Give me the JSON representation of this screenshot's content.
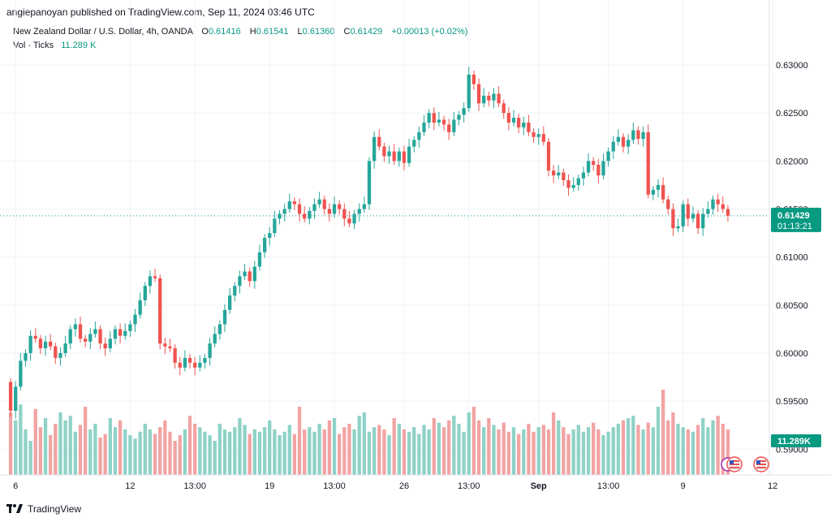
{
  "header": {
    "published": "angiepanoyan published on TradingView.com, Sep 11, 2024 03:46 UTC"
  },
  "legend": {
    "symbol": "New Zealand Dollar / U.S. Dollar, 4h, OANDA",
    "o_label": "O",
    "o_value": "0.61416",
    "h_label": "H",
    "h_value": "0.61541",
    "l_label": "L",
    "l_value": "0.61360",
    "c_label": "C",
    "c_value": "0.61429",
    "change": "+0.00013 (+0.02%)",
    "vol_label": "Vol · Ticks",
    "vol_value": "11.289 K"
  },
  "footer": {
    "brand": "TradingView"
  },
  "colors": {
    "up": "#26a69a",
    "down": "#ef5350",
    "vol_up": "#8fd2c7",
    "vol_down": "#f2a3a3",
    "badge": "#089981"
  },
  "chart_data": {
    "type": "candlestick",
    "title": "New Zealand Dollar / U.S. Dollar, 4h, OANDA",
    "ylim": [
      0.5885,
      0.631
    ],
    "y_ticks": [
      "0.63000",
      "0.62500",
      "0.62000",
      "0.61500",
      "0.61000",
      "0.60500",
      "0.60000",
      "0.59500",
      "0.59000"
    ],
    "y_tick_values": [
      0.63,
      0.625,
      0.62,
      0.615,
      0.61,
      0.605,
      0.6,
      0.595,
      0.59
    ],
    "x_ticks": [
      {
        "label": "6",
        "index": 1
      },
      {
        "label": "12",
        "index": 24
      },
      {
        "label": "13:00",
        "index": 37
      },
      {
        "label": "19",
        "index": 52
      },
      {
        "label": "13:00",
        "index": 65
      },
      {
        "label": "26",
        "index": 79
      },
      {
        "label": "13:00",
        "index": 92
      },
      {
        "label": "Sep",
        "index": 106
      },
      {
        "label": "13:00",
        "index": 120
      },
      {
        "label": "9",
        "index": 135
      },
      {
        "label": "12",
        "index": 153
      }
    ],
    "last_price": "0.61429",
    "countdown": "01:13:21",
    "last_volume": "11.289K",
    "close_start": 0.597,
    "closes": [
      0.594,
      0.5965,
      0.5992,
      0.6,
      0.6018,
      0.6015,
      0.6005,
      0.6012,
      0.6007,
      0.5995,
      0.6,
      0.601,
      0.6025,
      0.603,
      0.6015,
      0.6012,
      0.602,
      0.6025,
      0.601,
      0.6005,
      0.6015,
      0.6025,
      0.6018,
      0.6023,
      0.603,
      0.604,
      0.6055,
      0.607,
      0.608,
      0.6078,
      0.601,
      0.6007,
      0.6005,
      0.599,
      0.5985,
      0.5995,
      0.599,
      0.5985,
      0.599,
      0.5995,
      0.601,
      0.602,
      0.603,
      0.6045,
      0.606,
      0.607,
      0.608,
      0.6085,
      0.6075,
      0.609,
      0.6105,
      0.612,
      0.6125,
      0.614,
      0.6145,
      0.615,
      0.6158,
      0.6155,
      0.6145,
      0.614,
      0.6148,
      0.6155,
      0.616,
      0.615,
      0.6145,
      0.6155,
      0.615,
      0.614,
      0.6135,
      0.6145,
      0.615,
      0.6155,
      0.62,
      0.6225,
      0.6215,
      0.6205,
      0.621,
      0.62,
      0.621,
      0.6198,
      0.6215,
      0.6222,
      0.623,
      0.624,
      0.625,
      0.624,
      0.6243,
      0.6238,
      0.623,
      0.6243,
      0.6248,
      0.6255,
      0.629,
      0.628,
      0.626,
      0.6268,
      0.6263,
      0.627,
      0.626,
      0.625,
      0.624,
      0.6245,
      0.6235,
      0.624,
      0.623,
      0.6225,
      0.6228,
      0.622,
      0.619,
      0.6185,
      0.6188,
      0.618,
      0.6172,
      0.6175,
      0.6182,
      0.6188,
      0.62,
      0.6196,
      0.6185,
      0.62,
      0.621,
      0.622,
      0.6225,
      0.6215,
      0.6222,
      0.6232,
      0.6223,
      0.623,
      0.6165,
      0.617,
      0.6175,
      0.616,
      0.615,
      0.613,
      0.6132,
      0.6155,
      0.614,
      0.6145,
      0.613,
      0.6145,
      0.615,
      0.616,
      0.6155,
      0.615,
      0.6143
    ],
    "volumes": [
      55,
      48,
      62,
      40,
      30,
      58,
      42,
      50,
      35,
      45,
      55,
      48,
      52,
      38,
      44,
      60,
      40,
      45,
      33,
      36,
      50,
      42,
      48,
      40,
      35,
      32,
      38,
      45,
      40,
      36,
      42,
      48,
      38,
      30,
      35,
      40,
      52,
      45,
      42,
      38,
      35,
      30,
      45,
      40,
      38,
      42,
      50,
      44,
      36,
      40,
      38,
      42,
      48,
      40,
      35,
      38,
      44,
      36,
      60,
      40,
      42,
      38,
      45,
      40,
      48,
      50,
      36,
      42,
      45,
      40,
      52,
      55,
      38,
      42,
      44,
      40,
      35,
      50,
      45,
      40,
      38,
      42,
      36,
      44,
      40,
      50,
      46,
      42,
      48,
      52,
      45,
      38,
      55,
      60,
      48,
      42,
      50,
      44,
      40,
      46,
      38,
      42,
      36,
      40,
      45,
      38,
      42,
      44,
      40,
      55,
      48,
      42,
      36,
      40,
      44,
      38,
      42,
      46,
      40,
      35,
      38,
      42,
      45,
      48,
      50,
      52,
      44,
      40,
      46,
      42,
      60,
      75,
      48,
      55,
      45,
      42,
      40,
      38,
      44,
      50,
      42,
      48,
      52,
      45,
      40
    ],
    "volume_max_value": 100
  }
}
